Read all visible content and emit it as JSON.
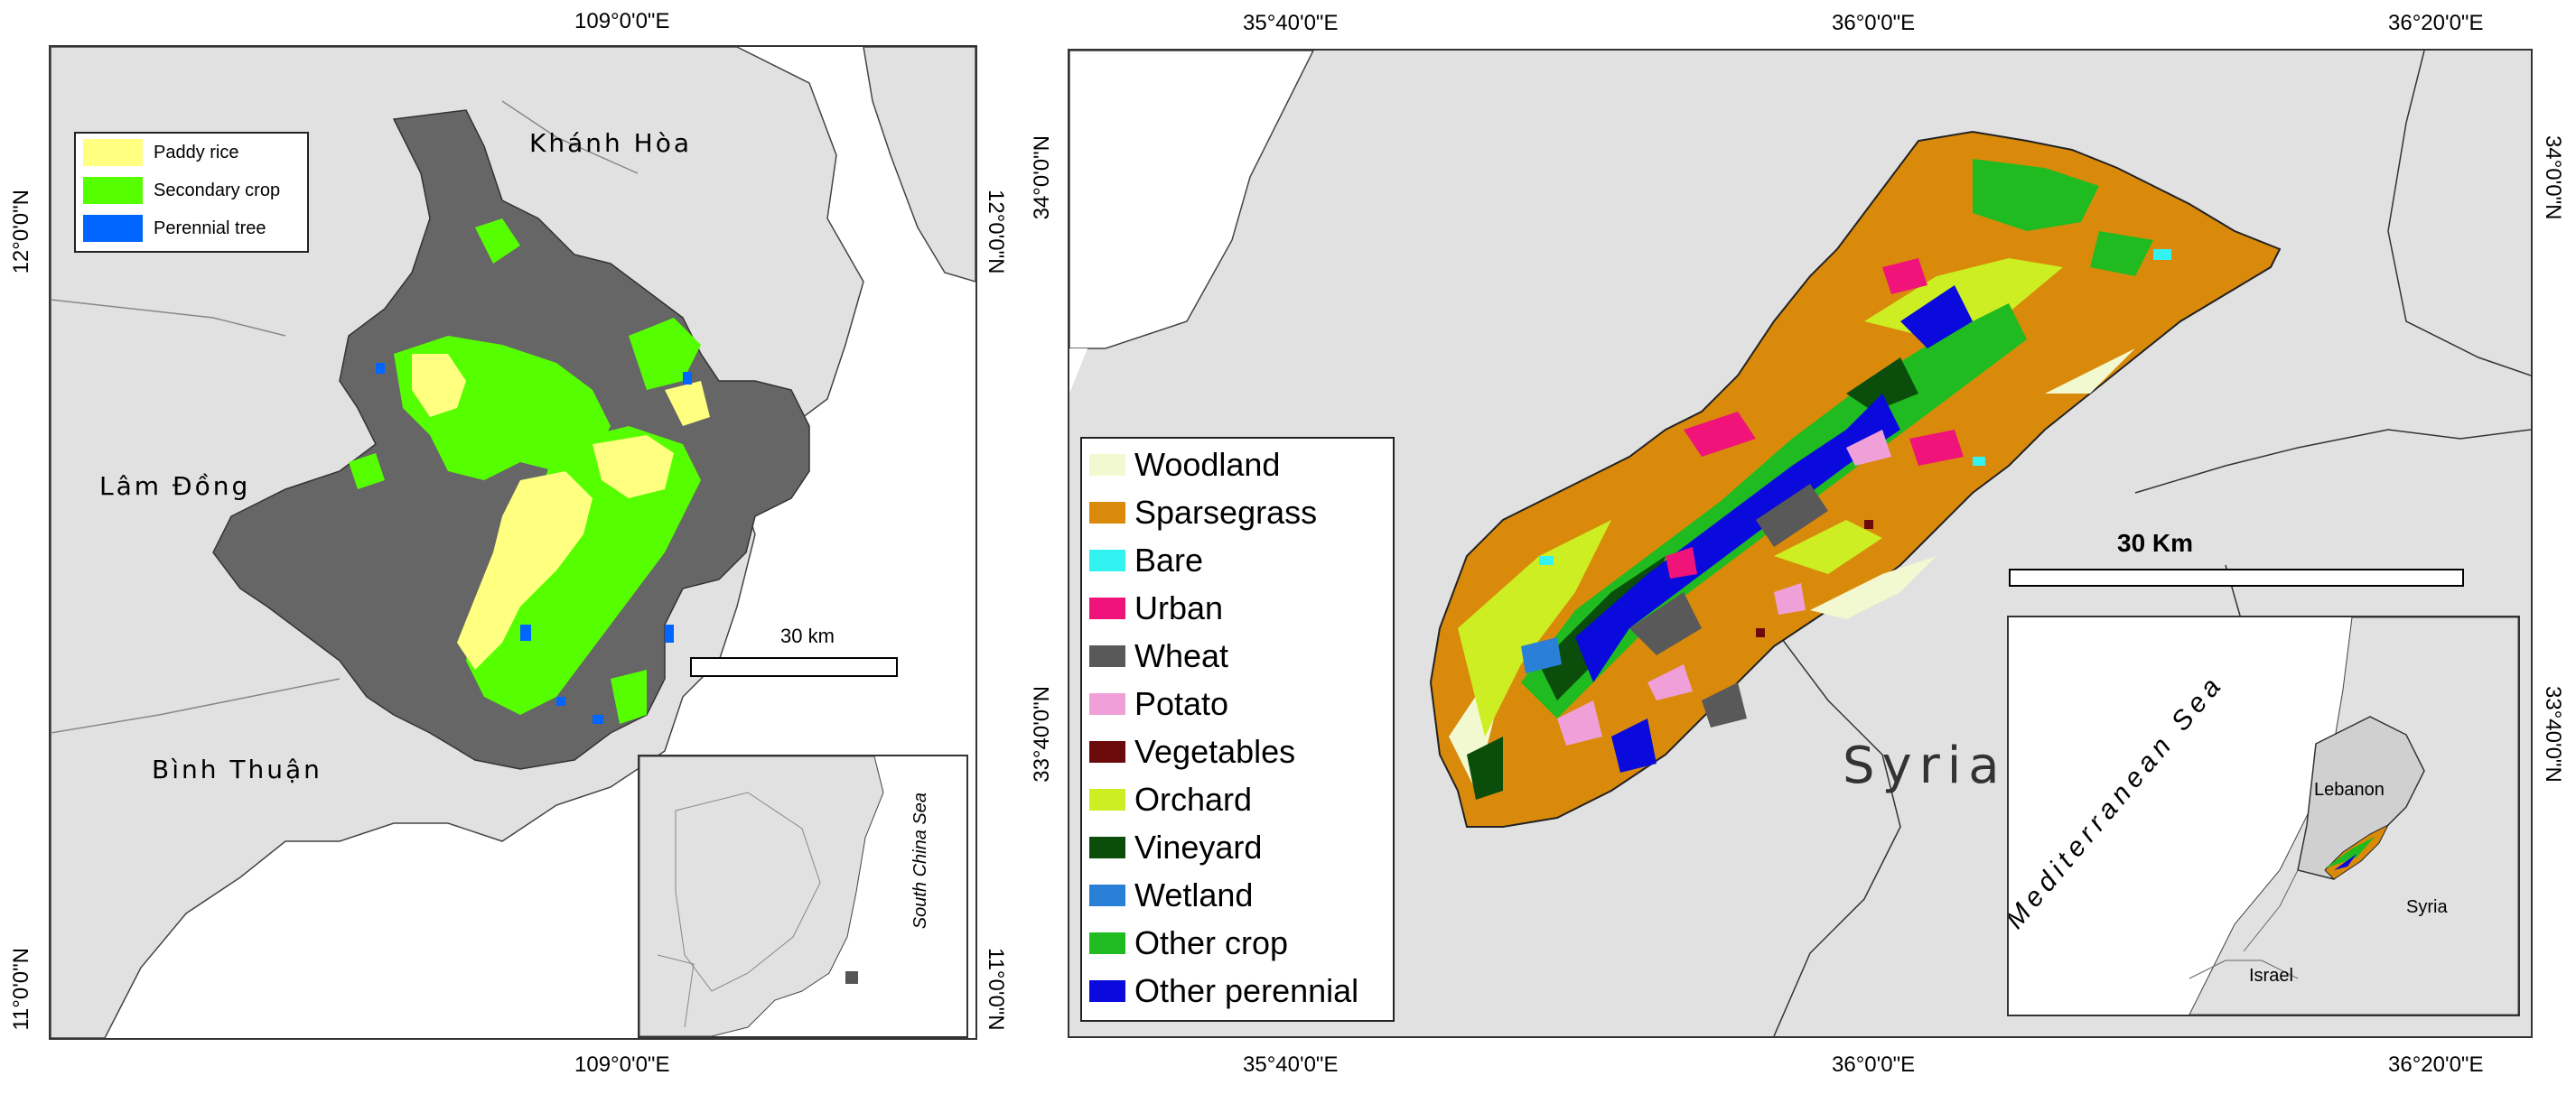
{
  "left_map": {
    "coords": {
      "top_lon": "109°0'0\"E",
      "bottom_lon": "109°0'0\"E",
      "left_lat_upper": "12°0'0\"N",
      "left_lat_lower": "11°0'0\"N",
      "right_lat_upper": "12°0'0\"N",
      "right_lat_lower": "11°0'0\"N"
    },
    "legend": [
      {
        "label": "Paddy rice",
        "color": "#ffff80"
      },
      {
        "label": "Secondary crop",
        "color": "#55ff00"
      },
      {
        "label": "Perennial tree",
        "color": "#0066ff"
      }
    ],
    "places": {
      "khanh_hoa": "Khánh Hòa",
      "lam_dong": "Lâm Đồng",
      "binh_thuan": "Bình Thuận"
    },
    "scale_label": "30 km",
    "inset_sea_label": "South China Sea",
    "colors": {
      "land": "#e1e1e1",
      "province": "#666666",
      "sea": "#ffffff"
    }
  },
  "right_map": {
    "coords": {
      "top_lon_1": "35°40'0\"E",
      "top_lon_2": "36°0'0\"E",
      "top_lon_3": "36°20'0\"E",
      "bottom_lon_1": "35°40'0\"E",
      "bottom_lon_2": "36°0'0\"E",
      "bottom_lon_3": "36°20'0\"E",
      "left_lat_upper": "34°0'0\"N",
      "left_lat_lower": "33°40'0\"N",
      "right_lat_upper": "34°0'0\"N",
      "right_lat_lower": "33°40'0\"N"
    },
    "legend": [
      {
        "label": "Woodland",
        "color": "#f2f8d0"
      },
      {
        "label": "Sparsegrass",
        "color": "#d98a0b"
      },
      {
        "label": "Bare",
        "color": "#33f2f2"
      },
      {
        "label": "Urban",
        "color": "#f0137a"
      },
      {
        "label": "Wheat",
        "color": "#595959"
      },
      {
        "label": "Potato",
        "color": "#f0a0d8"
      },
      {
        "label": "Vegetables",
        "color": "#6a0a0a"
      },
      {
        "label": "Orchard",
        "color": "#ccee22"
      },
      {
        "label": "Vineyard",
        "color": "#0b4d0b"
      },
      {
        "label": "Wetland",
        "color": "#2a7fd6"
      },
      {
        "label": "Other crop",
        "color": "#20bb20"
      },
      {
        "label": "Other perennial",
        "color": "#0a0add"
      }
    ],
    "syria_label": "Syria",
    "scale_label": "30 Km",
    "inset": {
      "sea_label": "Mediterranean Sea",
      "lebanon": "Lebanon",
      "syria": "Syria",
      "israel": "Israel"
    },
    "colors": {
      "land": "#e1e1e1",
      "sea": "#ffffff"
    }
  }
}
